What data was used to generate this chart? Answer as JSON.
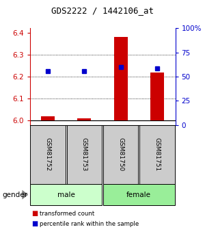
{
  "title": "GDS2222 / 1442106_at",
  "samples": [
    "GSM81752",
    "GSM81753",
    "GSM81750",
    "GSM81751"
  ],
  "gender": [
    "male",
    "male",
    "female",
    "female"
  ],
  "red_values": [
    6.02,
    6.01,
    6.38,
    6.22
  ],
  "blue_values": [
    6.225,
    6.225,
    6.243,
    6.237
  ],
  "ylim_left": [
    5.98,
    6.42
  ],
  "ylim_right": [
    0,
    100
  ],
  "yticks_left": [
    6.0,
    6.1,
    6.2,
    6.3,
    6.4
  ],
  "yticks_right": [
    0,
    25,
    50,
    75,
    100
  ],
  "ytick_labels_right": [
    "0",
    "25",
    "50",
    "75",
    "100%"
  ],
  "grid_lines": [
    6.1,
    6.2,
    6.3
  ],
  "red_color": "#cc0000",
  "blue_color": "#0000cc",
  "male_color": "#ccffcc",
  "female_color": "#99ee99",
  "bar_bg_color": "#cccccc",
  "bar_base": 6.0,
  "gender_groups": [
    [
      "male",
      0,
      2
    ],
    [
      "female",
      2,
      4
    ]
  ],
  "legend_items": [
    {
      "label": "transformed count",
      "color": "#cc0000"
    },
    {
      "label": "percentile rank within the sample",
      "color": "#0000cc"
    }
  ]
}
